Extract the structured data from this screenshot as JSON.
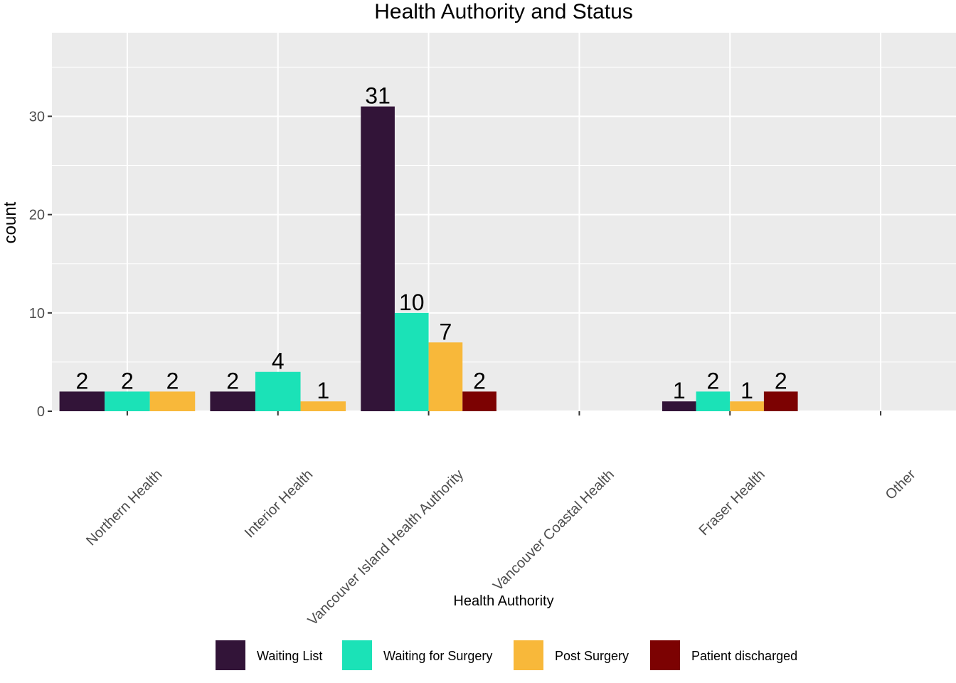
{
  "chart_data": {
    "type": "bar",
    "title": "Health Authority and Status",
    "xlabel": "Health Authority",
    "ylabel": "count",
    "categories": [
      "Northern Health",
      "Interior Health",
      "Vancouver Island Health Authority",
      "Vancouver Coastal Health",
      "Fraser Health",
      "Other"
    ],
    "series": [
      {
        "name": "Waiting List",
        "color": "#321438",
        "values": [
          2,
          2,
          31,
          null,
          1,
          null
        ]
      },
      {
        "name": "Waiting for Surgery",
        "color": "#1BE2B7",
        "values": [
          2,
          4,
          10,
          null,
          2,
          null
        ]
      },
      {
        "name": "Post Surgery",
        "color": "#F8B83A",
        "values": [
          2,
          1,
          7,
          null,
          1,
          null
        ]
      },
      {
        "name": "Patient discharged",
        "color": "#7C0202",
        "values": [
          null,
          null,
          2,
          null,
          2,
          null
        ]
      }
    ],
    "ylim": [
      0,
      38.5
    ],
    "yticks": [
      0,
      10,
      20,
      30
    ],
    "grid": true,
    "panel_background": "#EBEBEB",
    "legend_position": "bottom"
  }
}
